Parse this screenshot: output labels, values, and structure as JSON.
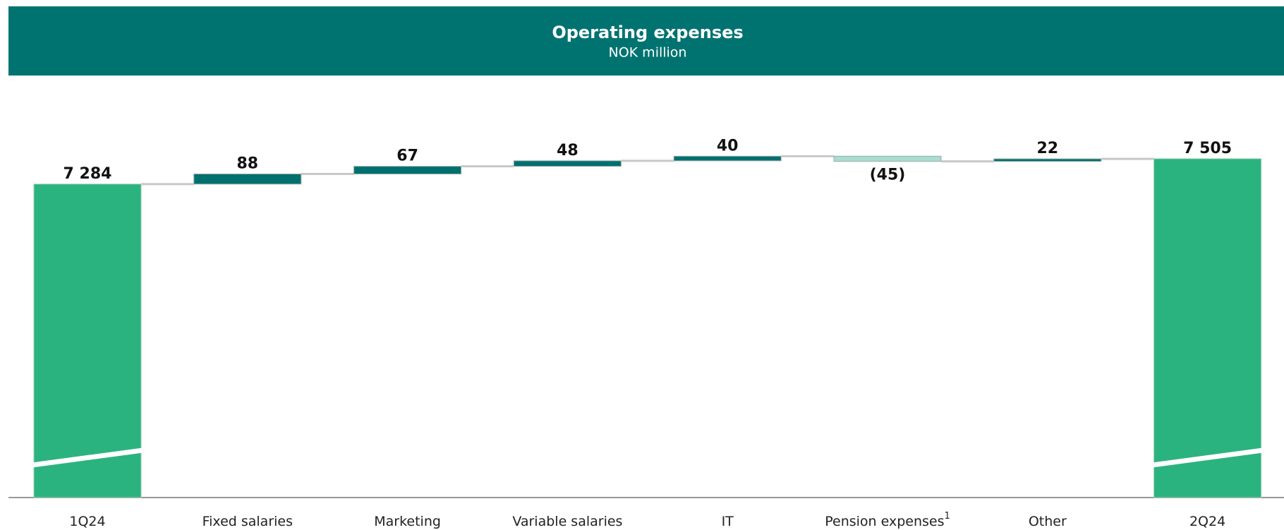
{
  "chart_data": {
    "type": "waterfall",
    "title": "Operating expenses",
    "subtitle": "NOK million",
    "categories": [
      "1Q24",
      "Fixed salaries",
      "Marketing",
      "Variable salaries",
      "IT",
      "Pension expenses",
      "Other",
      "2Q24"
    ],
    "category_notes": [
      null,
      null,
      null,
      null,
      null,
      "1",
      null,
      null
    ],
    "values": [
      7284,
      88,
      67,
      48,
      40,
      -45,
      22,
      7505
    ],
    "value_labels": [
      "7 284",
      "88",
      "67",
      "48",
      "40",
      "(45)",
      "22",
      "7 505"
    ],
    "is_total": [
      true,
      false,
      false,
      false,
      false,
      false,
      false,
      true
    ],
    "colors": {
      "total": "#2bb37f",
      "increase": "#00706e",
      "decrease": "#a8ddd0"
    },
    "ylim": [
      4550,
      7800
    ],
    "axis_break": true
  }
}
